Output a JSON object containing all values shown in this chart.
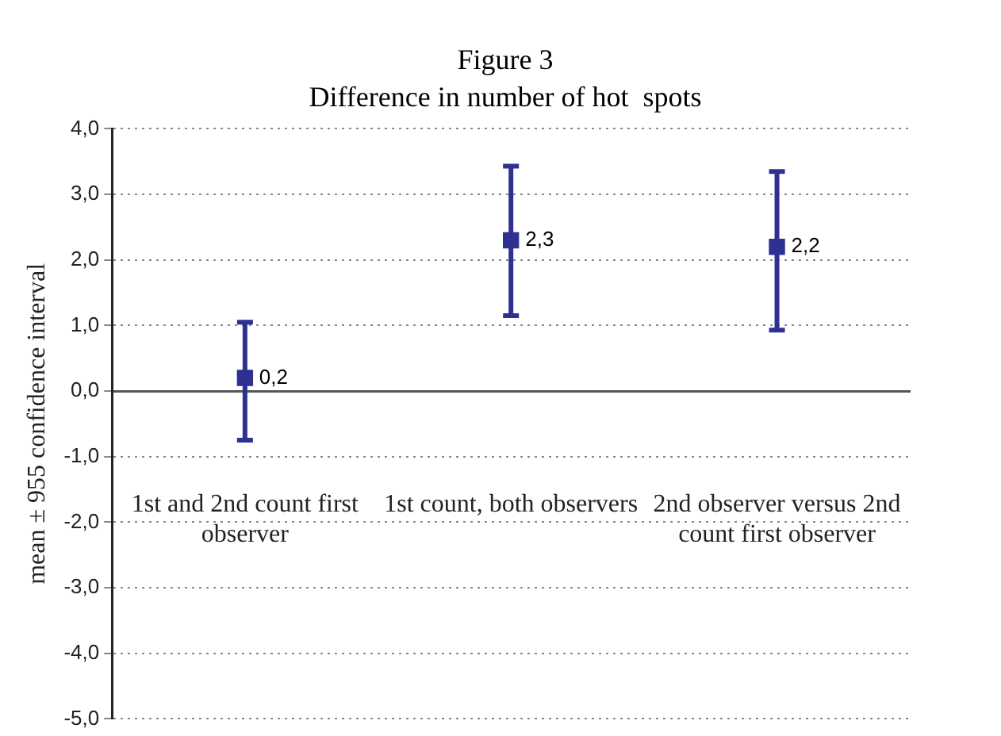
{
  "chart_data": {
    "type": "scatter",
    "title": "Figure 3",
    "subtitle": "Difference in number of hot  spots",
    "ylabel": "mean ± 955 confidence interval",
    "categories": [
      "1st and 2nd count first observer",
      "1st count, both observers",
      "2nd observer versus 2nd count first observer"
    ],
    "series": [
      {
        "color": "#2e3192",
        "values": [
          0.2,
          2.3,
          2.2
        ],
        "errors": [
          [
            -0.75,
            1.05
          ],
          [
            1.15,
            3.43
          ],
          [
            0.93,
            3.35
          ]
        ],
        "value_labels": [
          "0,2",
          "2,3",
          "2,2"
        ]
      }
    ],
    "marker": "square",
    "ylim": [
      -5,
      4
    ],
    "yticks": [
      {
        "value": 4,
        "label": "4,0"
      },
      {
        "value": 3,
        "label": "3,0"
      },
      {
        "value": 2,
        "label": "2,0"
      },
      {
        "value": 1,
        "label": "1,0"
      },
      {
        "value": 0,
        "label": "0,0"
      },
      {
        "value": -1,
        "label": "-1,0"
      },
      {
        "value": -2,
        "label": "-2,0"
      },
      {
        "value": -3,
        "label": "-3,0"
      },
      {
        "value": -4,
        "label": "-4,0"
      },
      {
        "value": -5,
        "label": "-5,0"
      }
    ],
    "grid": "y"
  }
}
